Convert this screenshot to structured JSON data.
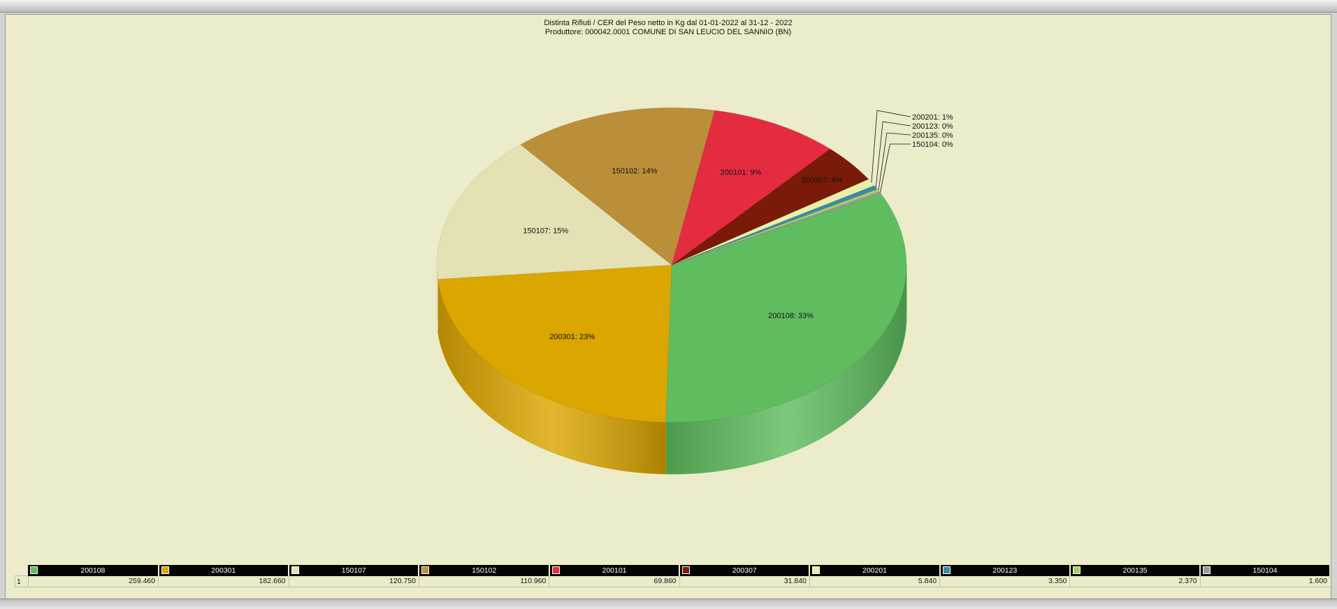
{
  "window": {
    "title_line1": "Distinta Rifiuti / CER  del Peso netto in Kg dal 01-01-2022 al 31-12 - 2022",
    "title_line2": "Produttore: 000042.0001 COMUNE DI SAN LEUCIO DEL SANNIO (BN)"
  },
  "chart_data": {
    "type": "pie",
    "title": "Distinta Rifiuti / CER  del Peso netto in Kg dal 01-01-2022 al 31-12 - 2022",
    "subtitle": "Produttore: 000042.0001 COMUNE DI SAN LEUCIO DEL SANNIO (BN)",
    "three_d": true,
    "legend_position": "bottom-table",
    "row_label": "1",
    "slices": [
      {
        "label": "200108",
        "value": 259.46,
        "value_text": "259.460",
        "percent_label": "200108: 33%",
        "color": "#5fbd5f"
      },
      {
        "label": "200301",
        "value": 182.66,
        "value_text": "182.660",
        "percent_label": "200301: 23%",
        "color": "#dca600"
      },
      {
        "label": "150107",
        "value": 120.75,
        "value_text": "120.750",
        "percent_label": "150107: 15%",
        "color": "#e4e2b4"
      },
      {
        "label": "150102",
        "value": 110.96,
        "value_text": "110.960",
        "percent_label": "150102: 14%",
        "color": "#bb8f3a"
      },
      {
        "label": "200101",
        "value": 69.86,
        "value_text": "69.860",
        "percent_label": "200101: 9%",
        "color": "#e52b40"
      },
      {
        "label": "200307",
        "value": 31.84,
        "value_text": "31.840",
        "percent_label": "200307: 4%",
        "color": "#7a1a08"
      },
      {
        "label": "200201",
        "value": 5.84,
        "value_text": "5.840",
        "percent_label": "200201: 1%",
        "color": "#e8f0a8"
      },
      {
        "label": "200123",
        "value": 3.35,
        "value_text": "3.350",
        "percent_label": "200123: 0%",
        "color": "#3a8aa8"
      },
      {
        "label": "200135",
        "value": 2.37,
        "value_text": "2.370",
        "percent_label": "200135: 0%",
        "color": "#a8d060"
      },
      {
        "label": "150104",
        "value": 1.6,
        "value_text": "1.600",
        "percent_label": "150104: 0%",
        "color": "#9a9a9a"
      }
    ]
  }
}
